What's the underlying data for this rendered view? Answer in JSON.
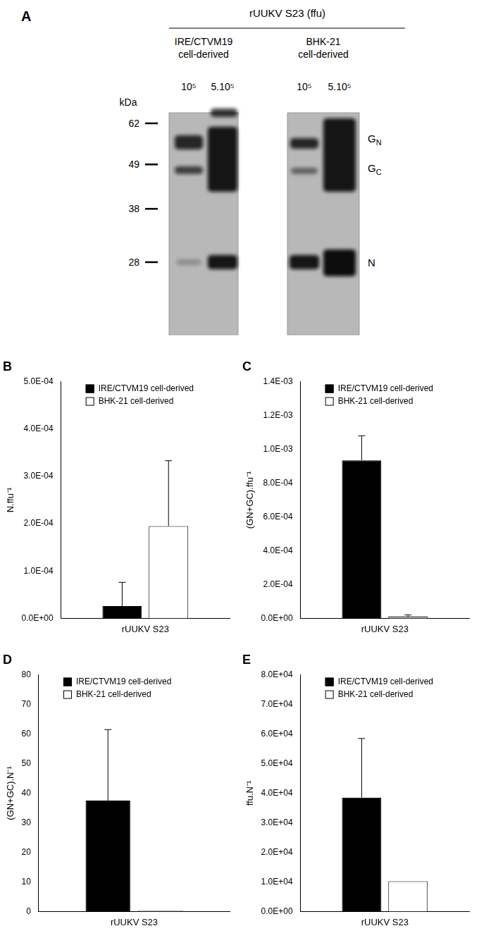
{
  "blot": {
    "panel_label": "A",
    "header": "rUUKV S23 (ffu)",
    "unit": "kDa",
    "markers": [
      62,
      49,
      38,
      28
    ],
    "groups": [
      {
        "name": "IRE/CTVM19 cell-derived",
        "lanes": [
          "10⁵",
          "5.10⁵"
        ]
      },
      {
        "name": "BHK-21 cell-derived",
        "lanes": [
          "10⁵",
          "5.10⁵"
        ]
      }
    ],
    "band_labels": [
      "GN",
      "GC",
      "N"
    ]
  },
  "chart_data": [
    {
      "type": "bar",
      "title": "B",
      "y_label": "N.ffu⁻¹",
      "categories": [
        "rUUKV S23"
      ],
      "series": [
        {
          "name": "IRE/CTVM19 cell-derived",
          "color": "#000000",
          "values": [
            2.6e-05
          ],
          "errors": [
            5e-05
          ]
        },
        {
          "name": "BHK-21 cell-derived",
          "color": "#ffffff",
          "values": [
            0.000195
          ],
          "errors": [
            0.000138
          ]
        }
      ],
      "ylim": [
        0,
        0.0005
      ],
      "yticks": [
        {
          "value": 0,
          "label": "0.0E+00"
        },
        {
          "value": 0.0001,
          "label": "1.0E-04"
        },
        {
          "value": 0.0002,
          "label": "2.0E-04"
        },
        {
          "value": 0.0003,
          "label": "3.0E-04"
        },
        {
          "value": 0.0004,
          "label": "4.0E-04"
        },
        {
          "value": 0.0005,
          "label": "5.0E-04"
        }
      ],
      "grid": false,
      "legend": "top"
    },
    {
      "type": "bar",
      "title": "C",
      "y_label": "(GN+GC).ffu⁻¹",
      "categories": [
        "rUUKV S23"
      ],
      "series": [
        {
          "name": "IRE/CTVM19 cell-derived",
          "color": "#000000",
          "values": [
            0.000935
          ],
          "errors": [
            0.000145
          ]
        },
        {
          "name": "BHK-21 cell-derived",
          "color": "#ffffff",
          "values": [
            1e-05
          ],
          "errors": [
            1e-05
          ]
        }
      ],
      "ylim": [
        0,
        0.0014
      ],
      "yticks": [
        {
          "value": 0,
          "label": "0.0E+00"
        },
        {
          "value": 0.0002,
          "label": "2.0E-04"
        },
        {
          "value": 0.0004,
          "label": "4.0E-04"
        },
        {
          "value": 0.0006,
          "label": "6.0E-04"
        },
        {
          "value": 0.0008,
          "label": "8.0E-04"
        },
        {
          "value": 0.001,
          "label": "1.0E-03"
        },
        {
          "value": 0.0012,
          "label": "1.2E-03"
        },
        {
          "value": 0.0014,
          "label": "1.4E-03"
        }
      ],
      "grid": false,
      "legend": "top"
    },
    {
      "type": "bar",
      "title": "D",
      "y_label": "(GN+GC).N⁻¹",
      "categories": [
        "rUUKV S23"
      ],
      "series": [
        {
          "name": "IRE/CTVM19 cell-derived",
          "color": "#000000",
          "values": [
            37.5
          ],
          "errors": [
            24
          ]
        },
        {
          "name": "BHK-21 cell-derived",
          "color": "#ffffff",
          "values": [
            0.3
          ],
          "errors": [
            0
          ]
        }
      ],
      "ylim": [
        0,
        80
      ],
      "yticks": [
        0,
        10,
        20,
        30,
        40,
        50,
        60,
        70,
        80
      ],
      "grid": false,
      "legend": "top"
    },
    {
      "type": "bar",
      "title": "E",
      "y_label": "ffu.N⁻¹",
      "categories": [
        "rUUKV S23"
      ],
      "series": [
        {
          "name": "IRE/CTVM19 cell-derived",
          "color": "#000000",
          "values": [
            38500
          ],
          "errors": [
            20000
          ]
        },
        {
          "name": "BHK-21 cell-derived",
          "color": "#ffffff",
          "values": [
            10200
          ],
          "errors": [
            0
          ]
        }
      ],
      "ylim": [
        0,
        80000
      ],
      "yticks": [
        {
          "value": 0,
          "label": "0.0E+00"
        },
        {
          "value": 10000,
          "label": "1.0E+04"
        },
        {
          "value": 20000,
          "label": "2.0E+04"
        },
        {
          "value": 30000,
          "label": "3.0E+04"
        },
        {
          "value": 40000,
          "label": "4.0E+04"
        },
        {
          "value": 50000,
          "label": "5.0E+04"
        },
        {
          "value": 60000,
          "label": "6.0E+04"
        },
        {
          "value": 70000,
          "label": "7.0E+04"
        },
        {
          "value": 80000,
          "label": "8.0E+04"
        }
      ],
      "grid": false,
      "legend": "top"
    }
  ]
}
